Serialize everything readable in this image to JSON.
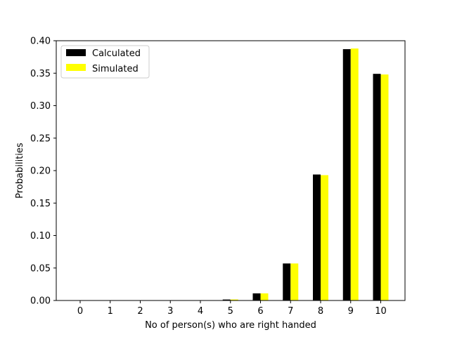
{
  "chart_data": {
    "type": "bar",
    "xlabel": "No of person(s) who are right handed",
    "ylabel": "Probabilities",
    "categories": [
      "0",
      "1",
      "2",
      "3",
      "4",
      "5",
      "6",
      "7",
      "8",
      "9",
      "10"
    ],
    "ylim": [
      0,
      0.4
    ],
    "yticks": [
      "0.00",
      "0.05",
      "0.10",
      "0.15",
      "0.20",
      "0.25",
      "0.30",
      "0.35",
      "0.40"
    ],
    "grid": false,
    "legend": "top-left",
    "series": [
      {
        "name": "Calculated",
        "color": "#000000",
        "values": [
          0.0,
          0.0,
          0.0,
          0.0,
          0.0003,
          0.0015,
          0.011,
          0.057,
          0.194,
          0.387,
          0.349
        ]
      },
      {
        "name": "Simulated",
        "color": "#ffff00",
        "values": [
          0.0,
          0.0,
          0.0,
          0.0,
          0.0003,
          0.0016,
          0.011,
          0.057,
          0.193,
          0.388,
          0.348
        ]
      }
    ]
  }
}
